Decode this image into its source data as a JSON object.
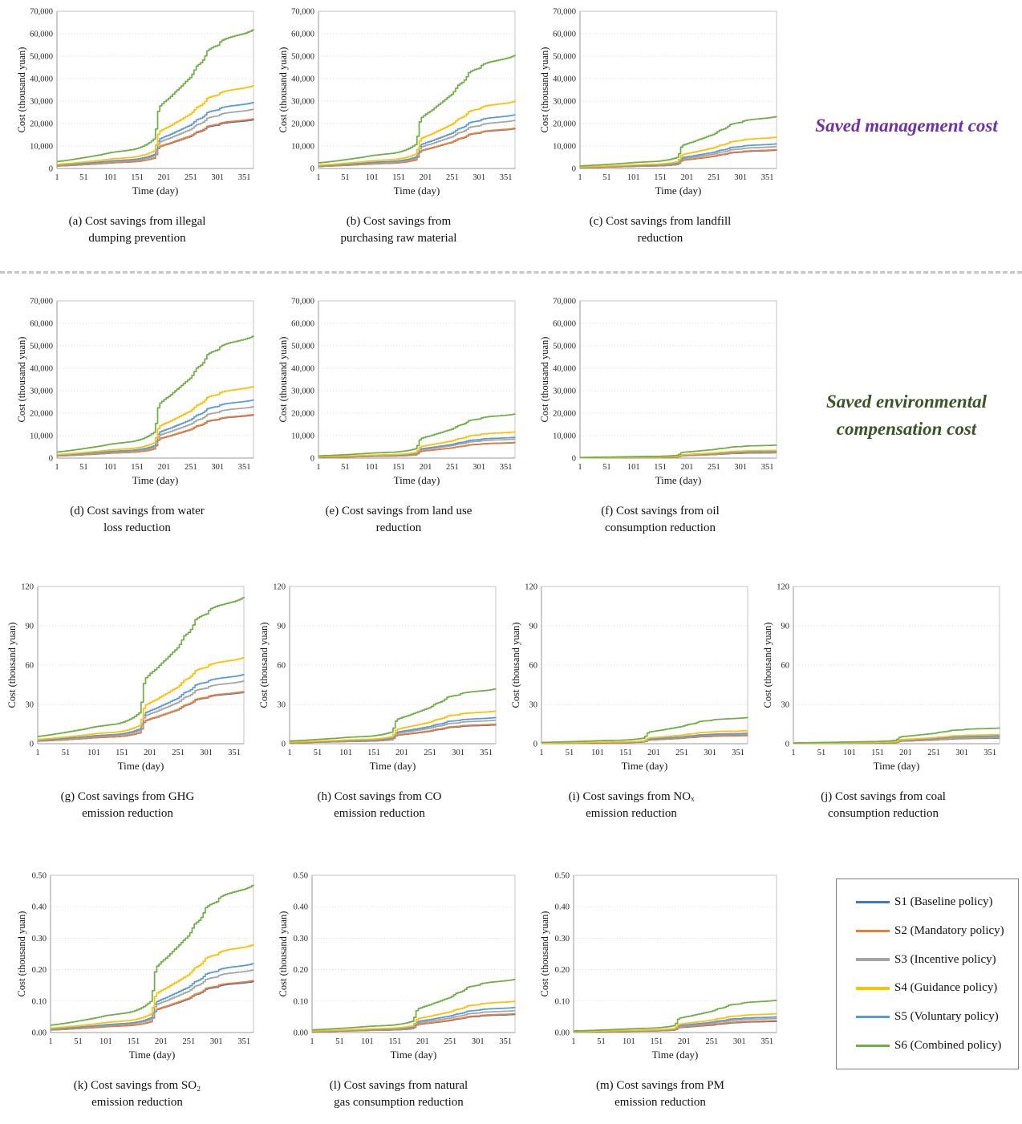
{
  "sections": {
    "management": {
      "label": "Saved management cost",
      "color": "#7030A0"
    },
    "environmental": {
      "label_line1": "Saved environmental",
      "label_line2": "compensation cost",
      "color": "#375623"
    }
  },
  "series": [
    {
      "id": "S1",
      "label": "S1 (Baseline policy)",
      "color": "#4472C4"
    },
    {
      "id": "S2",
      "label": "S2 (Mandatory policy)",
      "color": "#ED7D31"
    },
    {
      "id": "S3",
      "label": "S3 (Incentive policy)",
      "color": "#A5A5A5"
    },
    {
      "id": "S5",
      "label": "S5 (Voluntary policy)",
      "color": "#5B9BD5"
    },
    {
      "id": "S4",
      "label": "S4 (Guidance policy)",
      "color": "#FFC000"
    },
    {
      "id": "S6",
      "label": "S6 (Combined policy)",
      "color": "#70AD47"
    }
  ],
  "legend_order": [
    "S1",
    "S2",
    "S3",
    "S4",
    "S5",
    "S6"
  ],
  "legend_labels": {
    "S1": "S1 (Baseline policy)",
    "S2": "S2 (Mandatory policy)",
    "S3": "S3 (Incentive policy)",
    "S4": "S4 (Guidance policy)",
    "S5": "S5 (Voluntary policy)",
    "S6": "S6 (Combined policy)"
  },
  "profile": {
    "comment": "shared normalized cumulative step profile: y(day) = final_value * frac(day)",
    "x": [
      1,
      21,
      41,
      61,
      81,
      101,
      121,
      141,
      151,
      161,
      171,
      181,
      184,
      187,
      190,
      196,
      201,
      211,
      221,
      231,
      241,
      251,
      256,
      261,
      266,
      271,
      276,
      281,
      286,
      291,
      301,
      306,
      311,
      321,
      331,
      341,
      351,
      361,
      368
    ],
    "frac": [
      0.05,
      0.06,
      0.072,
      0.085,
      0.098,
      0.115,
      0.125,
      0.135,
      0.145,
      0.16,
      0.18,
      0.21,
      0.25,
      0.35,
      0.44,
      0.46,
      0.48,
      0.51,
      0.55,
      0.585,
      0.625,
      0.66,
      0.7,
      0.735,
      0.75,
      0.765,
      0.8,
      0.845,
      0.86,
      0.87,
      0.885,
      0.915,
      0.925,
      0.94,
      0.95,
      0.96,
      0.97,
      0.985,
      1.0
    ]
  },
  "chart_data": [
    {
      "id": "a",
      "type": "line",
      "caption": [
        "(a) Cost savings from illegal",
        "dumping prevention"
      ],
      "xlabel": "Time (day)",
      "ylabel": "Cost (thousand yuan)",
      "xticks": [
        1,
        51,
        101,
        151,
        201,
        251,
        301,
        351
      ],
      "xmax": 368,
      "ymax": 70000,
      "ystep": 10000,
      "yformat": "comma",
      "yticklabels": [
        "0",
        "10,000",
        "20,000",
        "30,000",
        "40,000",
        "50,000",
        "60,000",
        "70,000"
      ],
      "values": {
        "S1": 21800,
        "S2": 22200,
        "S3": 26500,
        "S4": 37000,
        "S5": 29500,
        "S6": 62000
      }
    },
    {
      "id": "b",
      "type": "line",
      "caption": [
        "(b) Cost savings from",
        "purchasing raw material"
      ],
      "xlabel": "Time (day)",
      "ylabel": "Cost (thousand yuan)",
      "xticks": [
        1,
        51,
        101,
        151,
        201,
        251,
        301,
        351
      ],
      "xmax": 368,
      "ymax": 70000,
      "ystep": 10000,
      "yformat": "comma",
      "yticklabels": [
        "0",
        "10,000",
        "20,000",
        "30,000",
        "40,000",
        "50,000",
        "60,000",
        "70,000"
      ],
      "values": {
        "S1": 17800,
        "S2": 18000,
        "S3": 21500,
        "S4": 30000,
        "S5": 24000,
        "S6": 50500
      }
    },
    {
      "id": "c",
      "type": "line",
      "caption": [
        "(c) Cost savings from landfill",
        "reduction"
      ],
      "xlabel": "Time (day)",
      "ylabel": "Cost (thousand yuan)",
      "xticks": [
        1,
        51,
        101,
        151,
        201,
        251,
        301,
        351
      ],
      "xmax": 368,
      "ymax": 70000,
      "ystep": 10000,
      "yformat": "comma",
      "yticklabels": [
        "0",
        "10,000",
        "20,000",
        "30,000",
        "40,000",
        "50,000",
        "60,000",
        "70,000"
      ],
      "values": {
        "S1": 8200,
        "S2": 8400,
        "S3": 9800,
        "S4": 14000,
        "S5": 11000,
        "S6": 23200
      }
    },
    {
      "id": "d",
      "type": "line",
      "caption": [
        "(d) Cost savings from water",
        "loss reduction"
      ],
      "xlabel": "Time (day)",
      "ylabel": "Cost (thousand yuan)",
      "xticks": [
        1,
        51,
        101,
        151,
        201,
        251,
        301,
        351
      ],
      "xmax": 368,
      "ymax": 70000,
      "ystep": 10000,
      "yformat": "comma",
      "yticklabels": [
        "0",
        "10,000",
        "20,000",
        "30,000",
        "40,000",
        "50,000",
        "60,000",
        "70,000"
      ],
      "values": {
        "S1": 19300,
        "S2": 19500,
        "S3": 23000,
        "S4": 32000,
        "S5": 26000,
        "S6": 54500
      }
    },
    {
      "id": "e",
      "type": "line",
      "caption": [
        "(e) Cost savings from land use",
        "reduction"
      ],
      "xlabel": "Time (day)",
      "ylabel": "Cost (thousand yuan)",
      "xticks": [
        1,
        51,
        101,
        151,
        201,
        251,
        301,
        351
      ],
      "xmax": 368,
      "ymax": 70000,
      "ystep": 10000,
      "yformat": "comma",
      "yticklabels": [
        "0",
        "10,000",
        "20,000",
        "30,000",
        "40,000",
        "50,000",
        "60,000",
        "70,000"
      ],
      "values": {
        "S1": 6900,
        "S2": 7000,
        "S3": 8500,
        "S4": 11700,
        "S5": 9300,
        "S6": 19700
      }
    },
    {
      "id": "f",
      "type": "line",
      "caption": [
        "(f) Cost savings from oil",
        "consumption reduction"
      ],
      "xlabel": "Time (day)",
      "ylabel": "Cost (thousand yuan)",
      "xticks": [
        1,
        51,
        101,
        151,
        201,
        251,
        301,
        351
      ],
      "xmax": 368,
      "ymax": 70000,
      "ystep": 10000,
      "yformat": "comma",
      "yticklabels": [
        "0",
        "10,000",
        "20,000",
        "30,000",
        "40,000",
        "50,000",
        "60,000",
        "70,000"
      ],
      "values": {
        "S1": 2400,
        "S2": 2500,
        "S3": 2800,
        "S4": 3500,
        "S5": 3000,
        "S6": 5800
      }
    },
    {
      "id": "g",
      "type": "line",
      "caption": [
        "(g) Cost savings from GHG",
        "emission reduction"
      ],
      "xlabel": "Time (day)",
      "ylabel": "Cost (thousand yuan)",
      "xticks": [
        1,
        51,
        101,
        151,
        201,
        251,
        301,
        351
      ],
      "xmax": 368,
      "ymax": 120,
      "ystep": 30,
      "yformat": "int",
      "yticklabels": [
        "0",
        "30",
        "60",
        "90",
        "120"
      ],
      "values": {
        "S1": 39.5,
        "S2": 40,
        "S3": 48,
        "S4": 66,
        "S5": 53,
        "S6": 112
      }
    },
    {
      "id": "h",
      "type": "line",
      "caption": [
        "(h) Cost savings from CO",
        "emission reduction"
      ],
      "xlabel": "Time (day)",
      "ylabel": "Cost (thousand yuan)",
      "xticks": [
        1,
        51,
        101,
        151,
        201,
        251,
        301,
        351
      ],
      "xmax": 368,
      "ymax": 120,
      "ystep": 30,
      "yformat": "int",
      "yticklabels": [
        "0",
        "30",
        "60",
        "90",
        "120"
      ],
      "values": {
        "S1": 14.5,
        "S2": 15,
        "S3": 18,
        "S4": 25,
        "S5": 20,
        "S6": 42
      }
    },
    {
      "id": "i",
      "type": "line",
      "caption": [
        "(i) Cost savings from NOₓ",
        "emission reduction"
      ],
      "xlabel": "Time (day)",
      "ylabel": "Cost (thousand yuan)",
      "xticks": [
        1,
        51,
        101,
        151,
        201,
        251,
        301,
        351
      ],
      "xmax": 368,
      "ymax": 120,
      "ystep": 30,
      "yformat": "int",
      "yticklabels": [
        "0",
        "30",
        "60",
        "90",
        "120"
      ],
      "values": {
        "S1": 6.3,
        "S2": 6.5,
        "S3": 7.5,
        "S4": 10,
        "S5": 8,
        "S6": 20
      }
    },
    {
      "id": "j",
      "type": "line",
      "caption": [
        "(j) Cost savings from coal",
        "consumption reduction"
      ],
      "xlabel": "Time (day)",
      "ylabel": "Cost (thousand yuan)",
      "xticks": [
        1,
        51,
        101,
        151,
        201,
        251,
        301,
        351
      ],
      "xmax": 368,
      "ymax": 120,
      "ystep": 30,
      "yformat": "int",
      "yticklabels": [
        "0",
        "30",
        "60",
        "90",
        "120"
      ],
      "values": {
        "S1": 4.3,
        "S2": 4.5,
        "S3": 5,
        "S4": 7,
        "S5": 6,
        "S6": 12
      }
    },
    {
      "id": "k",
      "type": "line",
      "caption": [
        "(k) Cost savings from SO₂",
        "emission reduction"
      ],
      "xlabel": "Time (day)",
      "ylabel": "Cost (thousand yuan)",
      "xticks": [
        1,
        51,
        101,
        151,
        201,
        251,
        301,
        351
      ],
      "xmax": 368,
      "ymax": 0.5,
      "ystep": 0.1,
      "yformat": "dec2",
      "yticklabels": [
        "0.00",
        "0.10",
        "0.20",
        "0.30",
        "0.40",
        "0.50"
      ],
      "values": {
        "S1": 0.163,
        "S2": 0.166,
        "S3": 0.2,
        "S4": 0.28,
        "S5": 0.22,
        "S6": 0.47
      }
    },
    {
      "id": "l",
      "type": "line",
      "caption": [
        "(l) Cost savings from natural",
        "gas consumption reduction"
      ],
      "xlabel": "Time (day)",
      "ylabel": "Cost (thousand yuan)",
      "xticks": [
        1,
        51,
        101,
        151,
        201,
        251,
        301,
        351
      ],
      "xmax": 368,
      "ymax": 0.5,
      "ystep": 0.1,
      "yformat": "dec2",
      "yticklabels": [
        "0.00",
        "0.10",
        "0.20",
        "0.30",
        "0.40",
        "0.50"
      ],
      "values": {
        "S1": 0.058,
        "S2": 0.06,
        "S3": 0.07,
        "S4": 0.1,
        "S5": 0.08,
        "S6": 0.17
      }
    },
    {
      "id": "m",
      "type": "line",
      "caption": [
        "(m) Cost savings from PM",
        "emission reduction"
      ],
      "xlabel": "Time (day)",
      "ylabel": "Cost (thousand yuan)",
      "xticks": [
        1,
        51,
        101,
        151,
        201,
        251,
        301,
        351
      ],
      "xmax": 368,
      "ymax": 0.5,
      "ystep": 0.1,
      "yformat": "dec2",
      "yticklabels": [
        "0.00",
        "0.10",
        "0.20",
        "0.30",
        "0.40",
        "0.50"
      ],
      "values": {
        "S1": 0.036,
        "S2": 0.038,
        "S3": 0.045,
        "S4": 0.06,
        "S5": 0.05,
        "S6": 0.103
      }
    }
  ]
}
